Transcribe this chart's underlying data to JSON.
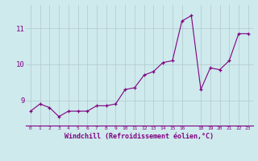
{
  "x": [
    0,
    1,
    2,
    3,
    4,
    5,
    6,
    7,
    8,
    9,
    10,
    11,
    12,
    13,
    14,
    15,
    16,
    17,
    18,
    19,
    20,
    21,
    22,
    23
  ],
  "y": [
    8.7,
    8.9,
    8.8,
    8.55,
    8.7,
    8.7,
    8.7,
    8.85,
    8.85,
    8.9,
    9.3,
    9.35,
    9.7,
    9.8,
    10.05,
    10.1,
    11.2,
    11.35,
    9.3,
    9.9,
    9.85,
    10.1,
    10.85,
    10.85
  ],
  "line_color": "#800080",
  "marker": "+",
  "marker_size": 3,
  "bg_color": "#ceeaed",
  "grid_color": "#b0c8cc",
  "xlabel": "Windchill (Refroidissement éolien,°C)",
  "ylabel_ticks": [
    9,
    10,
    11
  ],
  "xlim": [
    -0.5,
    23.5
  ],
  "ylim": [
    8.3,
    11.65
  ],
  "xticks": [
    0,
    1,
    2,
    3,
    4,
    5,
    6,
    7,
    8,
    9,
    10,
    11,
    12,
    13,
    14,
    15,
    16,
    18,
    19,
    20,
    21,
    22,
    23
  ]
}
